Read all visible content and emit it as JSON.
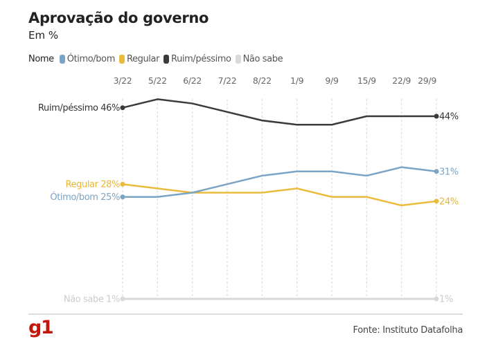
{
  "header": {
    "title": "Aprovação do governo",
    "subtitle": "Em %"
  },
  "legend": {
    "title": "Nome",
    "items": [
      {
        "label": "Ótimo/bom",
        "color": "#7ba3c4"
      },
      {
        "label": "Regular",
        "color": "#eabb3c"
      },
      {
        "label": "Ruim/péssimo",
        "color": "#3b3b3b"
      },
      {
        "label": "Não sabe",
        "color": "#d9d9d9"
      }
    ]
  },
  "footer": {
    "logo": "g1",
    "logo_color": "#c4170c",
    "source": "Fonte: Instituto Datafolha"
  },
  "chart_data": {
    "type": "line",
    "title": "Aprovação do governo",
    "subtitle": "Em %",
    "xlabel": "",
    "ylabel": "%",
    "x": [
      "3/22",
      "5/22",
      "6/22",
      "7/22",
      "8/22",
      "1/9",
      "9/9",
      "15/9",
      "22/9",
      "29/9"
    ],
    "ylim": [
      1,
      48
    ],
    "grid": "vertical dashed",
    "legend_position": "top-left",
    "series": [
      {
        "name": "Ruim/péssimo",
        "color": "#3b3b3b",
        "label_color": "#333333",
        "values": [
          46,
          48,
          47,
          45,
          43,
          42,
          42,
          44,
          44,
          44
        ],
        "start_label": "Ruim/péssimo 46%",
        "end_label": "44%"
      },
      {
        "name": "Ótimo/bom",
        "color": "#7ba3c4",
        "label_color": "#7ba3c4",
        "values": [
          25,
          25,
          26,
          28,
          30,
          31,
          31,
          30,
          32,
          31
        ],
        "start_label": "Ótimo/bom 25%",
        "end_label": "31%"
      },
      {
        "name": "Regular",
        "color": "#eabb3c",
        "label_color": "#e8b533",
        "values": [
          28,
          27,
          26,
          26,
          26,
          27,
          25,
          25,
          23,
          24
        ],
        "start_label": "Regular 28%",
        "end_label": "24%"
      },
      {
        "name": "Não sabe",
        "color": "#d9d9d9",
        "label_color": "#cccccc",
        "values": [
          1,
          1,
          1,
          1,
          1,
          1,
          1,
          1,
          1,
          1
        ],
        "start_label": "Não sabe 1%",
        "end_label": "1%"
      }
    ]
  }
}
